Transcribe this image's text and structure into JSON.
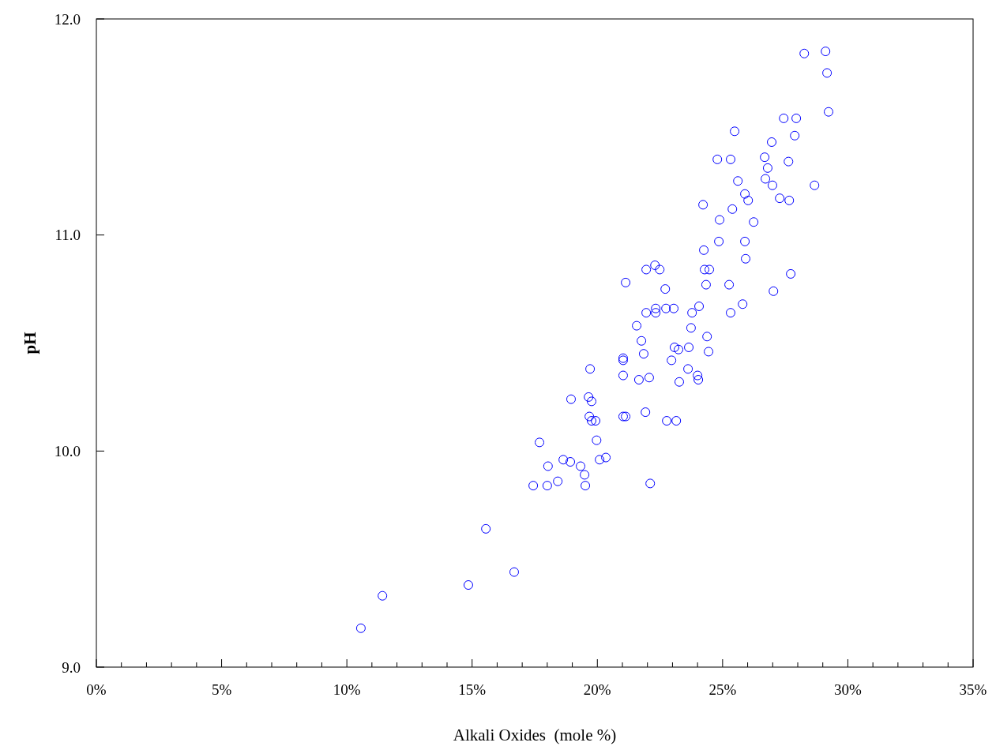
{
  "chart_data": {
    "type": "scatter",
    "xlabel": "Alkali Oxides  (mole %)",
    "ylabel": "pH",
    "xlim": [
      0,
      35
    ],
    "ylim": [
      9,
      12
    ],
    "xticks": [
      {
        "value": 0,
        "label": "0%"
      },
      {
        "value": 1,
        "label": null
      },
      {
        "value": 2,
        "label": null
      },
      {
        "value": 3,
        "label": null
      },
      {
        "value": 4,
        "label": null
      },
      {
        "value": 5,
        "label": "5%"
      },
      {
        "value": 6,
        "label": null
      },
      {
        "value": 7,
        "label": null
      },
      {
        "value": 8,
        "label": null
      },
      {
        "value": 9,
        "label": null
      },
      {
        "value": 10,
        "label": "10%"
      },
      {
        "value": 11,
        "label": null
      },
      {
        "value": 12,
        "label": null
      },
      {
        "value": 13,
        "label": null
      },
      {
        "value": 14,
        "label": null
      },
      {
        "value": 15,
        "label": "15%"
      },
      {
        "value": 16,
        "label": null
      },
      {
        "value": 17,
        "label": null
      },
      {
        "value": 18,
        "label": null
      },
      {
        "value": 19,
        "label": null
      },
      {
        "value": 20,
        "label": "20%"
      },
      {
        "value": 21,
        "label": null
      },
      {
        "value": 22,
        "label": null
      },
      {
        "value": 23,
        "label": null
      },
      {
        "value": 24,
        "label": null
      },
      {
        "value": 25,
        "label": "25%"
      },
      {
        "value": 26,
        "label": null
      },
      {
        "value": 27,
        "label": null
      },
      {
        "value": 28,
        "label": null
      },
      {
        "value": 29,
        "label": null
      },
      {
        "value": 30,
        "label": "30%"
      },
      {
        "value": 31,
        "label": null
      },
      {
        "value": 32,
        "label": null
      },
      {
        "value": 33,
        "label": null
      },
      {
        "value": 34,
        "label": null
      },
      {
        "value": 35,
        "label": "35%"
      }
    ],
    "yticks": [
      {
        "value": 9,
        "label": "9.0"
      },
      {
        "value": 10,
        "label": "10.0"
      },
      {
        "value": 11,
        "label": "11.0"
      },
      {
        "value": 12,
        "label": "12.0"
      }
    ],
    "marker": "circle",
    "series": [
      {
        "color": "#0000ff",
        "x": [
          10.56,
          11.42,
          14.85,
          15.55,
          16.68,
          17.44,
          17.69,
          18.0,
          18.03,
          18.42,
          18.64,
          18.92,
          18.95,
          19.33,
          19.49,
          19.52,
          19.65,
          19.68,
          19.71,
          19.77,
          19.77,
          19.93,
          19.97,
          20.09,
          20.34,
          21.03,
          21.03,
          21.03,
          21.03,
          21.13,
          21.13,
          21.57,
          21.66,
          21.76,
          21.85,
          21.92,
          21.95,
          21.95,
          22.07,
          22.11,
          22.3,
          22.33,
          22.33,
          22.49,
          22.71,
          22.74,
          22.77,
          22.96,
          23.05,
          23.08,
          23.15,
          23.24,
          23.27,
          23.62,
          23.65,
          23.74,
          23.78,
          24.0,
          24.03,
          24.06,
          24.22,
          24.25,
          24.28,
          24.34,
          24.38,
          24.44,
          24.47,
          24.79,
          24.85,
          24.88,
          25.26,
          25.32,
          25.32,
          25.39,
          25.48,
          25.61,
          25.8,
          25.89,
          25.92,
          25.89,
          26.02,
          26.24,
          26.68,
          26.71,
          26.8,
          26.96,
          26.99,
          27.03,
          27.28,
          27.44,
          27.63,
          27.66,
          27.72,
          27.88,
          27.94,
          28.26,
          28.67,
          29.11,
          29.17,
          29.23
        ],
        "values": [
          9.18,
          9.33,
          9.38,
          9.64,
          9.44,
          9.84,
          10.04,
          9.84,
          9.93,
          9.86,
          9.96,
          9.95,
          10.24,
          9.93,
          9.89,
          9.84,
          10.25,
          10.16,
          10.38,
          10.23,
          10.14,
          10.14,
          10.05,
          9.96,
          9.97,
          10.43,
          10.42,
          10.35,
          10.16,
          10.16,
          10.78,
          10.58,
          10.33,
          10.51,
          10.45,
          10.18,
          10.84,
          10.64,
          10.34,
          9.85,
          10.86,
          10.66,
          10.64,
          10.84,
          10.75,
          10.66,
          10.14,
          10.42,
          10.66,
          10.48,
          10.14,
          10.47,
          10.32,
          10.38,
          10.48,
          10.57,
          10.64,
          10.35,
          10.33,
          10.67,
          11.14,
          10.93,
          10.84,
          10.77,
          10.53,
          10.46,
          10.84,
          11.35,
          10.97,
          11.07,
          10.77,
          11.35,
          10.64,
          11.12,
          11.48,
          11.25,
          10.68,
          10.97,
          10.89,
          11.19,
          11.16,
          11.06,
          11.36,
          11.26,
          11.31,
          11.43,
          11.23,
          10.74,
          11.17,
          11.54,
          11.34,
          11.16,
          10.82,
          11.46,
          11.54,
          11.84,
          11.23,
          11.85,
          11.75,
          11.57
        ]
      }
    ]
  }
}
